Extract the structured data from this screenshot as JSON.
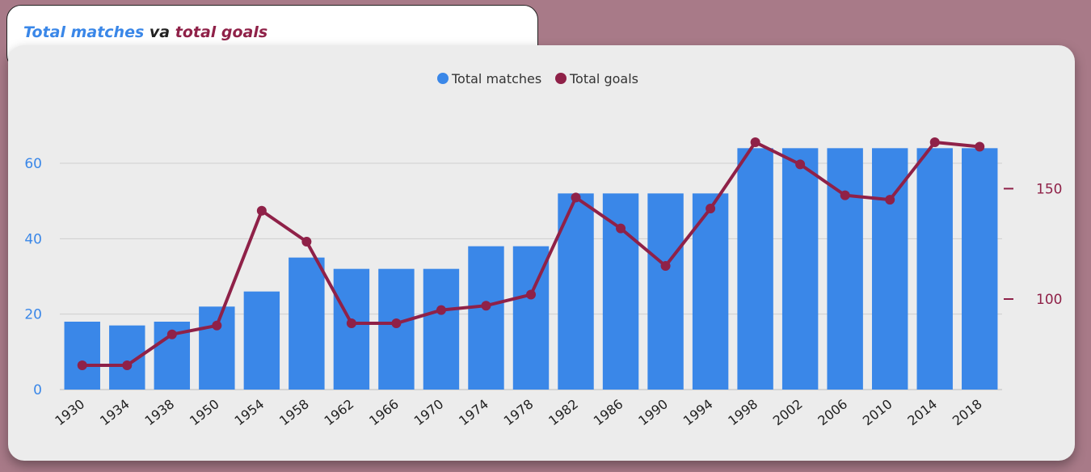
{
  "title": {
    "part1": "Total matches",
    "part2": " va ",
    "part3": "total goals"
  },
  "colors": {
    "matches": "#3a87e8",
    "goals": "#8f2148"
  },
  "chart_data": {
    "type": "bar",
    "categories": [
      "1930",
      "1934",
      "1938",
      "1950",
      "1954",
      "1958",
      "1962",
      "1966",
      "1970",
      "1974",
      "1978",
      "1982",
      "1986",
      "1990",
      "1994",
      "1998",
      "2002",
      "2006",
      "2010",
      "2014",
      "2018"
    ],
    "series": [
      {
        "name": "Total matches",
        "type": "bar",
        "axis": "left",
        "values": [
          18,
          17,
          18,
          22,
          26,
          35,
          32,
          32,
          32,
          38,
          38,
          52,
          52,
          52,
          52,
          64,
          64,
          64,
          64,
          64,
          64
        ]
      },
      {
        "name": "Total goals",
        "type": "line",
        "axis": "right",
        "values": [
          70,
          70,
          84,
          88,
          140,
          126,
          89,
          89,
          95,
          97,
          102,
          146,
          132,
          115,
          141,
          171,
          161,
          147,
          145,
          171,
          169
        ]
      }
    ],
    "left_axis": {
      "ylim": [
        0,
        72
      ],
      "ticks": [
        0,
        20,
        40,
        60
      ]
    },
    "right_axis": {
      "ylim": [
        59,
        182
      ],
      "ticks": [
        100,
        150
      ]
    },
    "legend": {
      "placement": "top-center",
      "labels": [
        "Total matches",
        "Total goals"
      ]
    },
    "grid": true
  }
}
